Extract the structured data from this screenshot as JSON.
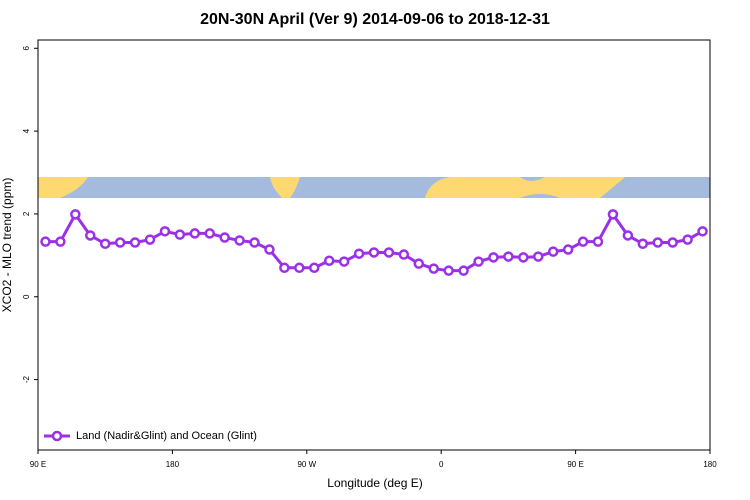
{
  "chart_data": {
    "type": "line",
    "title": "20N-30N April (Ver 9)   2014-09-06 to 2018-12-31",
    "x_label": "Longitude (deg E)",
    "y_label": "XCO2 - MLO trend (ppm)",
    "x": [
      95,
      105,
      115,
      125,
      135,
      145,
      155,
      165,
      175,
      185,
      195,
      205,
      215,
      225,
      235,
      245,
      255,
      265,
      275,
      285,
      295,
      305,
      315,
      325,
      335,
      345,
      355,
      365,
      375,
      385,
      395,
      405,
      415,
      425,
      435,
      445,
      455,
      465,
      475,
      485,
      495,
      505,
      515,
      525,
      535
    ],
    "series": [
      {
        "name": "Land (Nadir&Glint) and Ocean (Glint)",
        "color": "#9b30e8",
        "values": [
          1.33,
          1.33,
          1.99,
          1.48,
          1.28,
          1.31,
          1.31,
          1.38,
          1.58,
          1.5,
          1.53,
          1.53,
          1.43,
          1.36,
          1.31,
          1.14,
          0.7,
          0.7,
          0.7,
          0.87,
          0.85,
          1.04,
          1.07,
          1.07,
          1.02,
          0.8,
          0.68,
          0.63,
          0.63,
          0.85,
          0.95,
          0.97,
          0.95,
          0.97,
          1.09,
          1.14,
          1.33,
          1.33,
          1.99,
          1.48,
          1.28,
          1.31,
          1.31,
          1.38,
          1.58
        ]
      }
    ],
    "xlim": [
      90,
      540
    ],
    "xticks": [
      {
        "value": 90,
        "label": "90 E"
      },
      {
        "value": 180,
        "label": "180"
      },
      {
        "value": 270,
        "label": "90 W"
      },
      {
        "value": 360,
        "label": "0"
      },
      {
        "value": 450,
        "label": "90 E"
      },
      {
        "value": 540,
        "label": "180"
      }
    ],
    "ylim": [
      -3.7,
      6.2
    ],
    "yticks": [
      -2,
      0,
      2,
      4,
      6
    ],
    "legend": "bottom-left"
  }
}
